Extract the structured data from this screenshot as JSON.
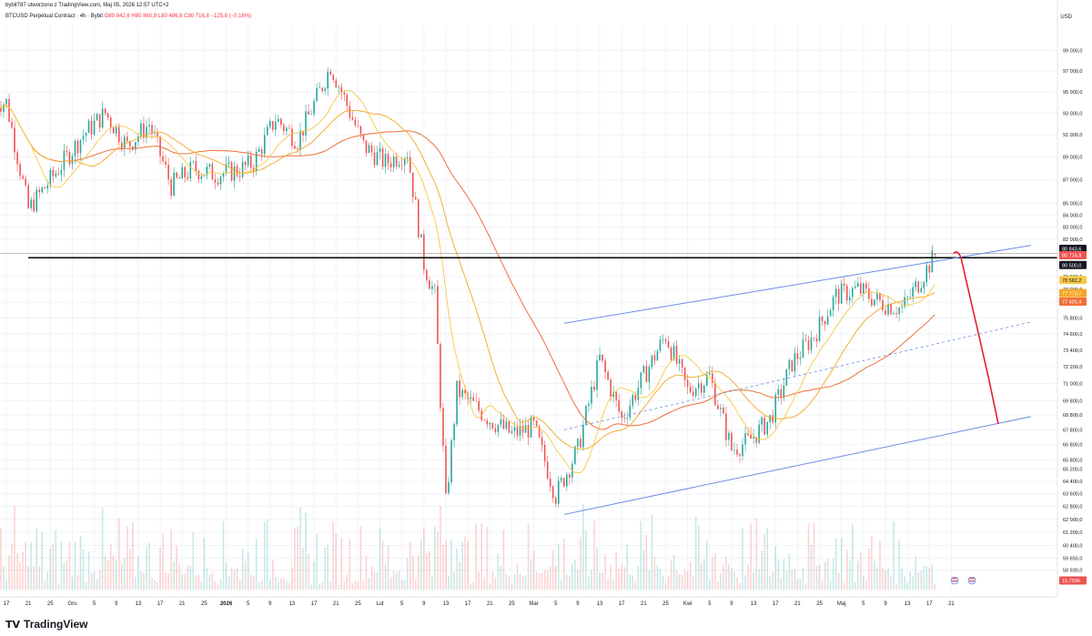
{
  "header": {
    "author_line": "bybit787 utworzono z TradingView.com, Maj 05, 2026 12:57 UTC+2",
    "symbol": "BTCUSD Perpetual Contract · 4h · Bybit",
    "ohlc": "O80 842,6  H80 860,9  L80 486,8  C80 716,8  −125,8 (−0,16%)"
  },
  "currency": "USD",
  "footer": {
    "brand": "TradingView",
    "logo_icon": "tradingview-logo-icon"
  },
  "colors": {
    "up": "#26a69a",
    "down": "#ef5350",
    "channel": "#6b8de3",
    "projection": "#e5202e",
    "ma_fast": "#f7c948",
    "ma_mid": "#f5a623",
    "ma_slow": "#f0703a",
    "level": "#000000"
  },
  "chart_data": {
    "type": "candlestick",
    "timeframe": "4h",
    "y_axis": {
      "ticks": [
        "99 000,0",
        "97 000,0",
        "95 000,0",
        "93 000,0",
        "91 000,0",
        "89 000,0",
        "87 000,0",
        "85 000,0",
        "84 000,0",
        "83 000,0",
        "82 000,0",
        "79 000,0",
        "78 000,0",
        "77 000,0",
        "75 800,0",
        "74 600,0",
        "73 400,0",
        "72 200,0",
        "71 000,0",
        "69 800,0",
        "68 800,0",
        "67 800,0",
        "66 800,0",
        "65 800,0",
        "65 200,0",
        "64 400,0",
        "63 600,0",
        "62 800,0",
        "62 000,0",
        "61 200,0",
        "60 400,0",
        "59 650,0",
        "58 930,0"
      ],
      "ylim": [
        57800,
        101500
      ],
      "scale": "log"
    },
    "x_axis": {
      "ticks": [
        "17",
        "21",
        "25",
        "Gru",
        "5",
        "9",
        "13",
        "17",
        "21",
        "25",
        "2026",
        "5",
        "9",
        "13",
        "17",
        "21",
        "25",
        "Lut",
        "5",
        "9",
        "13",
        "17",
        "21",
        "25",
        "Mar",
        "5",
        "9",
        "13",
        "17",
        "21",
        "25",
        "Kwi",
        "5",
        "9",
        "13",
        "17",
        "21",
        "25",
        "Maj",
        "5",
        "9",
        "13",
        "17",
        "21"
      ]
    },
    "price_labels": [
      {
        "text": "80 843,6",
        "bg": "#131722",
        "value": 80843.6
      },
      {
        "text": "80 716,8",
        "bg": "#ef5350",
        "value": 80716.8
      },
      {
        "text": "80 500,0",
        "bg": "#131722",
        "value": 80500
      },
      {
        "text": "78 582,2",
        "bg": "#f7c948",
        "value": 78582.2
      },
      {
        "text": "77 773,7",
        "bg": "#f5a623",
        "value": 77773.7
      },
      {
        "text": "77 401,4",
        "bg": "#f0703a",
        "value": 77401.4
      },
      {
        "text": "15,759K",
        "bg": "#ef5350",
        "value": null
      }
    ],
    "horizontal_levels": [
      80500,
      80843.6
    ],
    "channel": {
      "upper": [
        [
          "Mar (start)",
          75400
        ],
        [
          "May 16",
          81500
        ]
      ],
      "middle": [
        [
          "Mar (start)",
          67800
        ],
        [
          "May 16",
          75500
        ]
      ],
      "lower": [
        [
          "Mar (start)",
          62300
        ],
        [
          "May 16",
          68700
        ]
      ]
    },
    "projection": [
      80843,
      80500,
      78000,
      75000,
      71500,
      68200
    ],
    "anchors": [
      {
        "x": "Nov 17",
        "close": 94000
      },
      {
        "x": "Nov 21",
        "close": 84500
      },
      {
        "x": "Nov 25",
        "close": 87000
      },
      {
        "x": "Dec 1",
        "close": 91000
      },
      {
        "x": "Dec 5",
        "close": 93000
      },
      {
        "x": "Dec 9",
        "close": 90000
      },
      {
        "x": "Dec 13",
        "close": 92000
      },
      {
        "x": "Dec 17",
        "close": 86500
      },
      {
        "x": "Dec 21",
        "close": 88000
      },
      {
        "x": "Dec 25",
        "close": 87500
      },
      {
        "x": "Dec 29",
        "close": 87800
      },
      {
        "x": "Jan 1",
        "close": 88500
      },
      {
        "x": "Jan 5",
        "close": 92500
      },
      {
        "x": "Jan 9",
        "close": 90500
      },
      {
        "x": "Jan 13",
        "close": 95000
      },
      {
        "x": "Jan 15",
        "close": 97500
      },
      {
        "x": "Jan 17",
        "close": 95000
      },
      {
        "x": "Jan 21",
        "close": 90000
      },
      {
        "x": "Jan 25",
        "close": 88500
      },
      {
        "x": "Jan 29",
        "close": 89500
      },
      {
        "x": "Feb 1",
        "close": 80000
      },
      {
        "x": "Feb 3",
        "close": 77500
      },
      {
        "x": "Feb 5",
        "close": 63000
      },
      {
        "x": "Feb 7",
        "close": 70500
      },
      {
        "x": "Feb 13",
        "close": 68500
      },
      {
        "x": "Feb 17",
        "close": 67500
      },
      {
        "x": "Feb 21",
        "close": 68000
      },
      {
        "x": "Feb 25",
        "close": 63500
      },
      {
        "x": "Mar 1",
        "close": 66500
      },
      {
        "x": "Mar 5",
        "close": 72800
      },
      {
        "x": "Mar 9",
        "close": 68500
      },
      {
        "x": "Mar 13",
        "close": 71500
      },
      {
        "x": "Mar 17",
        "close": 74500
      },
      {
        "x": "Mar 21",
        "close": 70500
      },
      {
        "x": "Mar 25",
        "close": 71500
      },
      {
        "x": "Mar 29",
        "close": 66500
      },
      {
        "x": "Apr 1",
        "close": 67000
      },
      {
        "x": "Apr 5",
        "close": 68500
      },
      {
        "x": "Apr 9",
        "close": 72500
      },
      {
        "x": "Apr 13",
        "close": 74500
      },
      {
        "x": "Apr 17",
        "close": 77500
      },
      {
        "x": "Apr 21",
        "close": 78000
      },
      {
        "x": "Apr 25",
        "close": 77000
      },
      {
        "x": "Apr 29",
        "close": 76500
      },
      {
        "x": "May 2",
        "close": 78500
      },
      {
        "x": "May 5",
        "close": 80717
      }
    ],
    "moving_averages": [
      {
        "name": "MA fast",
        "last": 78582.2
      },
      {
        "name": "MA mid",
        "last": 77773.7
      },
      {
        "name": "MA slow",
        "last": 77401.4
      }
    ]
  }
}
